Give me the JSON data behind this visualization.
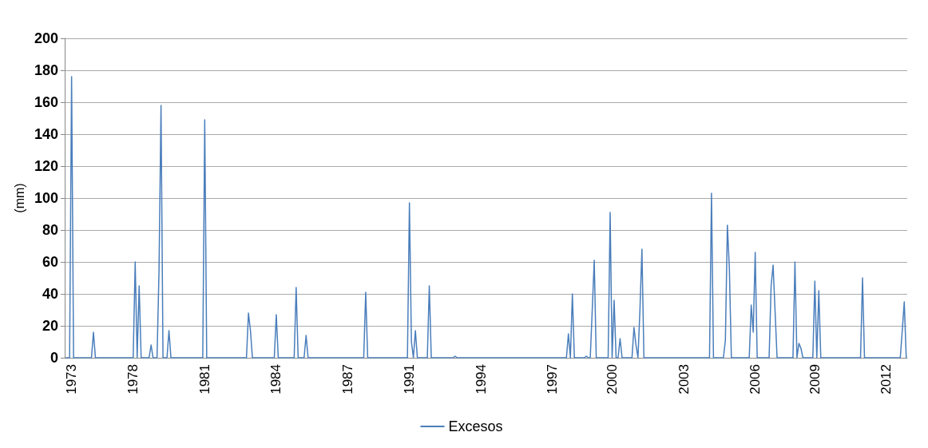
{
  "chart_data": {
    "type": "line",
    "ylabel": "(mm)",
    "ylim": [
      0,
      200
    ],
    "yticks": [
      0,
      20,
      40,
      60,
      80,
      100,
      120,
      140,
      160,
      180,
      200
    ],
    "grid": "y",
    "legend": "bottom",
    "marker": "none",
    "line_style": "solid",
    "categories": [
      null,
      null,
      null,
      "1973",
      null,
      null,
      null,
      null,
      null,
      null,
      null,
      null,
      null,
      null,
      null,
      null,
      null,
      null,
      null,
      null,
      null,
      null,
      null,
      null,
      null,
      null,
      null,
      null,
      null,
      null,
      null,
      null,
      null,
      null,
      "1978",
      null,
      null,
      null,
      null,
      null,
      null,
      null,
      null,
      null,
      null,
      null,
      null,
      null,
      null,
      null,
      null,
      null,
      null,
      null,
      null,
      null,
      null,
      null,
      null,
      null,
      null,
      null,
      null,
      null,
      null,
      null,
      null,
      null,
      null,
      null,
      "1981",
      null,
      null,
      null,
      null,
      null,
      null,
      null,
      null,
      null,
      null,
      null,
      null,
      null,
      null,
      null,
      null,
      null,
      null,
      null,
      null,
      null,
      null,
      null,
      null,
      null,
      null,
      null,
      null,
      null,
      null,
      null,
      null,
      null,
      null,
      null,
      "1984",
      null,
      null,
      null,
      null,
      null,
      null,
      null,
      null,
      null,
      null,
      null,
      null,
      null,
      null,
      null,
      null,
      null,
      null,
      null,
      null,
      null,
      null,
      null,
      null,
      null,
      null,
      null,
      null,
      null,
      null,
      null,
      null,
      null,
      null,
      null,
      "1987",
      null,
      null,
      null,
      null,
      null,
      null,
      null,
      null,
      null,
      null,
      null,
      null,
      null,
      null,
      null,
      null,
      null,
      null,
      null,
      null,
      null,
      null,
      null,
      null,
      null,
      null,
      null,
      null,
      null,
      null,
      "1991",
      null,
      null,
      null,
      null,
      null,
      null,
      null,
      null,
      null,
      null,
      null,
      null,
      null,
      null,
      null,
      null,
      null,
      null,
      null,
      null,
      null,
      null,
      null,
      null,
      null,
      null,
      null,
      null,
      null,
      null,
      null,
      null,
      null,
      null,
      null,
      "1994",
      null,
      null,
      null,
      null,
      null,
      null,
      null,
      null,
      null,
      null,
      null,
      null,
      null,
      null,
      null,
      null,
      null,
      null,
      null,
      null,
      null,
      null,
      null,
      null,
      null,
      null,
      null,
      null,
      null,
      null,
      null,
      null,
      null,
      null,
      null,
      "1997",
      null,
      null,
      null,
      null,
      null,
      null,
      null,
      null,
      null,
      null,
      null,
      null,
      null,
      null,
      null,
      null,
      null,
      null,
      null,
      null,
      null,
      null,
      null,
      null,
      null,
      null,
      null,
      null,
      null,
      "2000",
      null,
      null,
      null,
      null,
      null,
      null,
      null,
      null,
      null,
      null,
      null,
      null,
      null,
      null,
      null,
      null,
      null,
      null,
      null,
      null,
      null,
      null,
      null,
      null,
      null,
      null,
      null,
      null,
      null,
      null,
      null,
      null,
      null,
      null,
      null,
      "2003",
      null,
      null,
      null,
      null,
      null,
      null,
      null,
      null,
      null,
      null,
      null,
      null,
      null,
      null,
      null,
      null,
      null,
      null,
      null,
      null,
      null,
      null,
      null,
      null,
      null,
      null,
      null,
      null,
      null,
      null,
      null,
      null,
      null,
      null,
      null,
      "2006",
      null,
      null,
      null,
      null,
      null,
      null,
      null,
      null,
      null,
      null,
      null,
      null,
      null,
      null,
      null,
      null,
      null,
      null,
      null,
      null,
      null,
      null,
      null,
      null,
      null,
      null,
      null,
      null,
      null,
      "2009",
      null,
      null,
      null,
      null,
      null,
      null,
      null,
      null,
      null,
      null,
      null,
      null,
      null,
      null,
      null,
      null,
      null,
      null,
      null,
      null,
      null,
      null,
      null,
      null,
      null,
      null,
      null,
      null,
      null,
      null,
      null,
      null,
      null,
      null,
      null,
      "2012",
      null,
      null,
      null,
      null,
      null,
      null,
      null,
      null,
      null,
      null
    ],
    "series": [
      {
        "name": "Excesos",
        "color": "#4a7ebb",
        "values": [
          0,
          0,
          0,
          176,
          0,
          0,
          0,
          0,
          0,
          0,
          0,
          0,
          0,
          0,
          16,
          0,
          0,
          0,
          0,
          0,
          0,
          0,
          0,
          0,
          0,
          0,
          0,
          0,
          0,
          0,
          0,
          0,
          0,
          0,
          0,
          60,
          0,
          45,
          0,
          0,
          0,
          0,
          0,
          8,
          0,
          0,
          0,
          55,
          158,
          0,
          0,
          0,
          17,
          0,
          0,
          0,
          0,
          0,
          0,
          0,
          0,
          0,
          0,
          0,
          0,
          0,
          0,
          0,
          0,
          0,
          149,
          0,
          0,
          0,
          0,
          0,
          0,
          0,
          0,
          0,
          0,
          0,
          0,
          0,
          0,
          0,
          0,
          0,
          0,
          0,
          0,
          0,
          28,
          17,
          0,
          0,
          0,
          0,
          0,
          0,
          0,
          0,
          0,
          0,
          0,
          0,
          27,
          0,
          0,
          0,
          0,
          0,
          0,
          0,
          0,
          0,
          44,
          0,
          0,
          0,
          0,
          14,
          0,
          0,
          0,
          0,
          0,
          0,
          0,
          0,
          0,
          0,
          0,
          0,
          0,
          0,
          0,
          0,
          0,
          0,
          0,
          0,
          0,
          0,
          0,
          0,
          0,
          0,
          0,
          0,
          0,
          41,
          0,
          0,
          0,
          0,
          0,
          0,
          0,
          0,
          0,
          0,
          0,
          0,
          0,
          0,
          0,
          0,
          0,
          0,
          0,
          0,
          0,
          97,
          10,
          0,
          17,
          0,
          0,
          0,
          0,
          0,
          0,
          45,
          0,
          0,
          0,
          0,
          0,
          0,
          0,
          0,
          0,
          0,
          0,
          0,
          1,
          0,
          0,
          0,
          0,
          0,
          0,
          0,
          0,
          0,
          0,
          0,
          0,
          0,
          0,
          0,
          0,
          0,
          0,
          0,
          0,
          0,
          0,
          0,
          0,
          0,
          0,
          0,
          0,
          0,
          0,
          0,
          0,
          0,
          0,
          0,
          0,
          0,
          0,
          0,
          0,
          0,
          0,
          0,
          0,
          0,
          0,
          0,
          0,
          0,
          0,
          0,
          0,
          0,
          0,
          0,
          0,
          15,
          0,
          40,
          0,
          0,
          0,
          0,
          0,
          0,
          1,
          0,
          0,
          30,
          61,
          0,
          0,
          0,
          0,
          0,
          0,
          0,
          91,
          0,
          36,
          0,
          0,
          12,
          0,
          0,
          0,
          0,
          0,
          0,
          19,
          8,
          0,
          30,
          68,
          0,
          0,
          0,
          0,
          0,
          0,
          0,
          0,
          0,
          0,
          0,
          0,
          0,
          0,
          0,
          0,
          0,
          0,
          0,
          0,
          0,
          0,
          0,
          0,
          0,
          0,
          0,
          0,
          0,
          0,
          0,
          0,
          0,
          0,
          103,
          0,
          0,
          0,
          0,
          0,
          0,
          11,
          83,
          56,
          0,
          0,
          0,
          0,
          0,
          0,
          0,
          0,
          0,
          0,
          33,
          16,
          66,
          0,
          0,
          0,
          0,
          0,
          0,
          0,
          45,
          58,
          29,
          0,
          0,
          0,
          0,
          0,
          0,
          0,
          0,
          0,
          60,
          0,
          9,
          6,
          0,
          0,
          0,
          0,
          0,
          0,
          48,
          0,
          42,
          0,
          0,
          0,
          0,
          0,
          0,
          0,
          0,
          0,
          0,
          0,
          0,
          0,
          0,
          0,
          0,
          0,
          0,
          0,
          0,
          0,
          50,
          0,
          0,
          0,
          0,
          0,
          0,
          0,
          0,
          0,
          0,
          0,
          0,
          0,
          0,
          0,
          0,
          0,
          0,
          0,
          17,
          35,
          0
        ]
      }
    ]
  }
}
